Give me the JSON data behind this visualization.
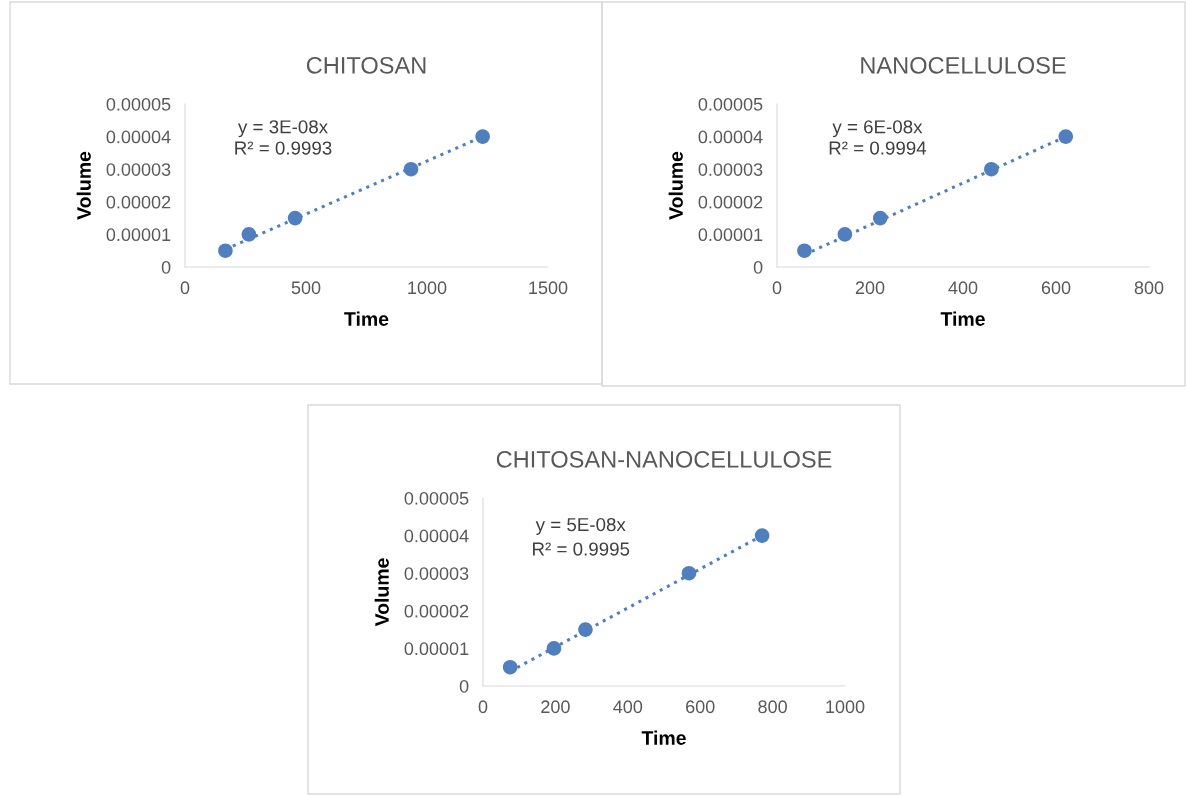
{
  "chart_data": [
    {
      "type": "scatter",
      "title": "CHITOSAN",
      "xlabel": "Time",
      "ylabel": "Volume",
      "annotations": [
        "y = 3E-08x",
        "R² = 0.9993"
      ],
      "marker": "circle",
      "grid": false,
      "legend": false,
      "x": [
        167,
        264,
        455,
        934,
        1230
      ],
      "series": [
        {
          "color": "#4e7fc0",
          "values": [
            5e-06,
            1e-05,
            1.5e-05,
            3e-05,
            4e-05
          ]
        },
        {
          "type": "line",
          "color": "#4e7fc0",
          "line_style": "dotted",
          "marker": "none",
          "x": [
            167,
            1230
          ],
          "values": [
            5.4e-06,
            4e-05
          ]
        }
      ],
      "xlim": [
        0,
        1500
      ],
      "xticks": [
        0,
        500,
        1000,
        1500
      ],
      "ylim": [
        0,
        5e-05
      ],
      "yticks": [
        {
          "value": 0,
          "label": "0"
        },
        {
          "value": 1e-05,
          "label": "0.00001"
        },
        {
          "value": 2e-05,
          "label": "0.00002"
        },
        {
          "value": 3e-05,
          "label": "0.00003"
        },
        {
          "value": 4e-05,
          "label": "0.00004"
        },
        {
          "value": 5e-05,
          "label": "0.00005"
        }
      ]
    },
    {
      "type": "scatter",
      "title": "NANOCELLULOSE",
      "xlabel": "Time",
      "ylabel": "Volume",
      "annotations": [
        "y = 6E-08x",
        "R² = 0.9994"
      ],
      "marker": "circle",
      "grid": false,
      "legend": false,
      "x": [
        59,
        146,
        222,
        461,
        621
      ],
      "series": [
        {
          "color": "#4e7fc0",
          "values": [
            5e-06,
            1e-05,
            1.5e-05,
            3e-05,
            4e-05
          ]
        },
        {
          "type": "line",
          "color": "#4e7fc0",
          "line_style": "dotted",
          "marker": "none",
          "x": [
            59,
            621
          ],
          "values": [
            3.8e-06,
            4e-05
          ]
        }
      ],
      "xlim": [
        0,
        800
      ],
      "xticks": [
        0,
        200,
        400,
        600,
        800
      ],
      "ylim": [
        0,
        5e-05
      ],
      "yticks": [
        {
          "value": 0,
          "label": "0"
        },
        {
          "value": 1e-05,
          "label": "0.00001"
        },
        {
          "value": 2e-05,
          "label": "0.00002"
        },
        {
          "value": 3e-05,
          "label": "0.00003"
        },
        {
          "value": 4e-05,
          "label": "0.00004"
        },
        {
          "value": 5e-05,
          "label": "0.00005"
        }
      ]
    },
    {
      "type": "scatter",
      "title": "CHITOSAN-NANOCELLULOSE",
      "xlabel": "Time",
      "ylabel": "Volume",
      "annotations": [
        "y = 5E-08x",
        "R² = 0.9995"
      ],
      "marker": "circle",
      "grid": false,
      "legend": false,
      "x": [
        75,
        196,
        283,
        569,
        771
      ],
      "series": [
        {
          "color": "#4e7fc0",
          "values": [
            5e-06,
            1e-05,
            1.5e-05,
            3e-05,
            4e-05
          ]
        },
        {
          "type": "line",
          "color": "#4e7fc0",
          "line_style": "dotted",
          "marker": "none",
          "x": [
            75,
            771
          ],
          "values": [
            3.9e-06,
            4e-05
          ]
        }
      ],
      "xlim": [
        0,
        1000
      ],
      "xticks": [
        0,
        200,
        400,
        600,
        800,
        1000
      ],
      "ylim": [
        0,
        5e-05
      ],
      "yticks": [
        {
          "value": 0,
          "label": "0"
        },
        {
          "value": 1e-05,
          "label": "0.00001"
        },
        {
          "value": 2e-05,
          "label": "0.00002"
        },
        {
          "value": 3e-05,
          "label": "0.00003"
        },
        {
          "value": 4e-05,
          "label": "0.00004"
        },
        {
          "value": 5e-05,
          "label": "0.00005"
        }
      ]
    }
  ]
}
